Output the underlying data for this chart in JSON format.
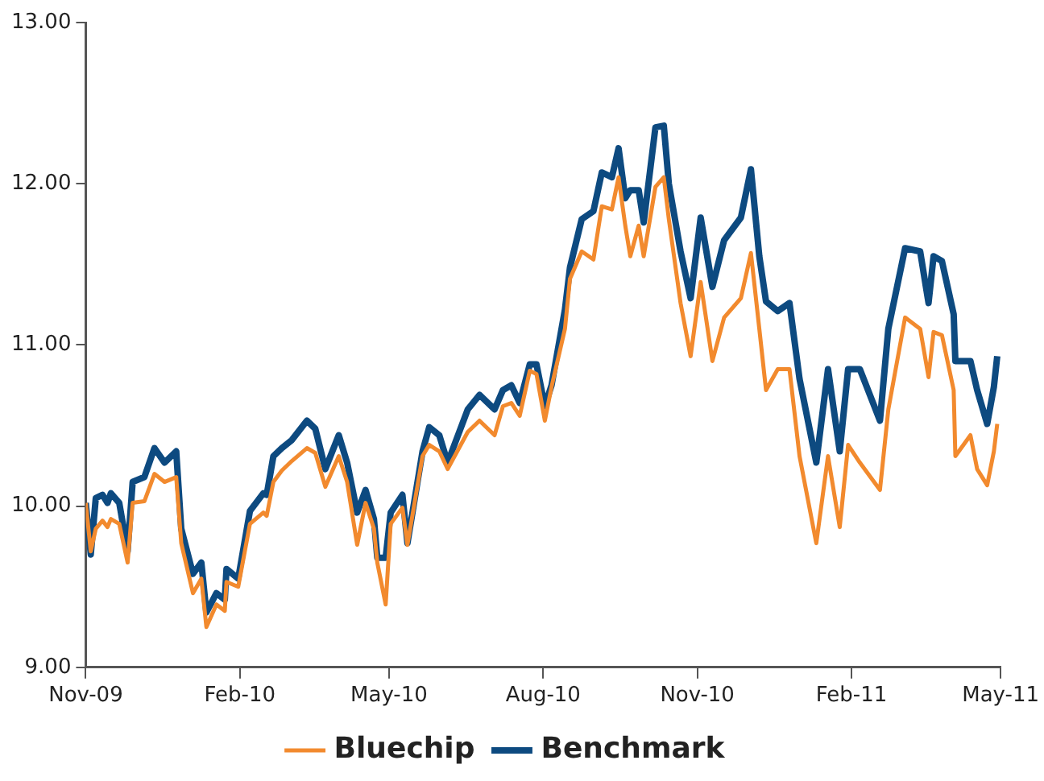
{
  "chart_data": {
    "type": "line",
    "x": [
      "2009-11-01",
      "2009-11-04",
      "2009-11-07",
      "2009-11-11",
      "2009-11-14",
      "2009-11-16",
      "2009-11-21",
      "2009-11-26",
      "2009-11-29",
      "2009-12-06",
      "2009-12-12",
      "2009-12-18",
      "2009-12-25",
      "2009-12-28",
      "2010-01-04",
      "2010-01-09",
      "2010-01-12",
      "2010-01-18",
      "2010-01-23",
      "2010-01-24",
      "2010-01-31",
      "2010-02-07",
      "2010-02-15",
      "2010-02-17",
      "2010-02-21",
      "2010-02-26",
      "2010-03-04",
      "2010-03-13",
      "2010-03-18",
      "2010-03-24",
      "2010-04-01",
      "2010-04-06",
      "2010-04-12",
      "2010-04-17",
      "2010-04-22",
      "2010-04-24",
      "2010-04-29",
      "2010-05-02",
      "2010-05-09",
      "2010-05-12",
      "2010-05-21",
      "2010-05-25",
      "2010-05-31",
      "2010-06-05",
      "2010-06-17",
      "2010-06-24",
      "2010-07-03",
      "2010-07-08",
      "2010-07-13",
      "2010-07-18",
      "2010-07-24",
      "2010-07-28",
      "2010-08-02",
      "2010-08-06",
      "2010-08-14",
      "2010-08-17",
      "2010-08-24",
      "2010-08-31",
      "2010-09-05",
      "2010-09-11",
      "2010-09-15",
      "2010-09-19",
      "2010-09-22",
      "2010-09-27",
      "2010-09-30",
      "2010-10-07",
      "2010-10-12",
      "2010-10-15",
      "2010-10-22",
      "2010-10-28",
      "2010-11-03",
      "2010-11-10",
      "2010-11-17",
      "2010-11-27",
      "2010-12-03",
      "2010-12-08",
      "2010-12-12",
      "2010-12-19",
      "2010-12-26",
      "2011-01-01",
      "2011-01-11",
      "2011-01-18",
      "2011-01-25",
      "2011-01-30",
      "2011-02-06",
      "2011-02-18",
      "2011-02-23",
      "2011-03-05",
      "2011-03-14",
      "2011-03-19",
      "2011-03-22",
      "2011-03-27",
      "2011-04-03",
      "2011-04-04",
      "2011-04-13",
      "2011-04-17",
      "2011-04-23",
      "2011-04-27",
      "2011-04-29"
    ],
    "series": [
      {
        "name": "Bluechip",
        "color": "#f28a2e",
        "values": [
          10.02,
          9.72,
          9.86,
          9.91,
          9.87,
          9.92,
          9.89,
          9.65,
          10.02,
          10.03,
          10.2,
          10.15,
          10.18,
          9.77,
          9.46,
          9.55,
          9.25,
          9.39,
          9.35,
          9.53,
          9.5,
          9.89,
          9.96,
          9.94,
          10.15,
          10.22,
          10.28,
          10.36,
          10.33,
          10.12,
          10.31,
          10.15,
          9.76,
          10.02,
          9.86,
          9.65,
          9.39,
          9.89,
          9.99,
          9.76,
          10.31,
          10.38,
          10.34,
          10.23,
          10.46,
          10.53,
          10.44,
          10.62,
          10.64,
          10.56,
          10.84,
          10.82,
          10.53,
          10.74,
          11.1,
          11.41,
          11.58,
          11.53,
          11.86,
          11.84,
          12.04,
          11.74,
          11.55,
          11.74,
          11.55,
          11.98,
          12.04,
          11.78,
          11.26,
          10.93,
          11.39,
          10.9,
          11.17,
          11.29,
          11.57,
          11.1,
          10.72,
          10.85,
          10.85,
          10.31,
          9.77,
          10.31,
          9.87,
          10.38,
          10.27,
          10.1,
          10.6,
          11.17,
          11.1,
          10.8,
          11.08,
          11.06,
          10.72,
          10.31,
          10.44,
          10.23,
          10.13,
          10.34,
          10.51
        ]
      },
      {
        "name": "Benchmark",
        "color": "#0d4a80",
        "values": [
          10.02,
          9.7,
          10.05,
          10.07,
          10.02,
          10.08,
          10.02,
          9.72,
          10.15,
          10.18,
          10.36,
          10.27,
          10.34,
          9.86,
          9.58,
          9.65,
          9.34,
          9.46,
          9.42,
          9.61,
          9.55,
          9.97,
          10.08,
          10.07,
          10.31,
          10.36,
          10.41,
          10.53,
          10.48,
          10.23,
          10.44,
          10.27,
          9.96,
          10.1,
          9.92,
          9.68,
          9.68,
          9.96,
          10.07,
          9.77,
          10.34,
          10.49,
          10.44,
          10.27,
          10.6,
          10.69,
          10.6,
          10.72,
          10.75,
          10.64,
          10.88,
          10.88,
          10.62,
          10.75,
          11.22,
          11.48,
          11.78,
          11.83,
          12.07,
          12.04,
          12.22,
          11.91,
          11.96,
          11.96,
          11.76,
          12.35,
          12.36,
          12.0,
          11.58,
          11.29,
          11.79,
          11.36,
          11.65,
          11.79,
          12.09,
          11.55,
          11.27,
          11.21,
          11.26,
          10.79,
          10.27,
          10.85,
          10.34,
          10.85,
          10.85,
          10.53,
          11.1,
          11.6,
          11.58,
          11.26,
          11.55,
          11.52,
          11.19,
          10.9,
          10.9,
          10.72,
          10.51,
          10.74,
          10.93
        ]
      }
    ],
    "xlim": [
      "2009-11-01",
      "2011-05-01"
    ],
    "xticks": [
      {
        "value": "2009-11-01",
        "label": "Nov-09"
      },
      {
        "value": "2010-02-01",
        "label": "Feb-10"
      },
      {
        "value": "2010-05-01",
        "label": "May-10"
      },
      {
        "value": "2010-08-01",
        "label": "Aug-10"
      },
      {
        "value": "2010-11-01",
        "label": "Nov-10"
      },
      {
        "value": "2011-02-01",
        "label": "Feb-11"
      },
      {
        "value": "2011-05-01",
        "label": "May-11"
      }
    ],
    "ylim": [
      9,
      13
    ],
    "yticks": [
      {
        "value": 9,
        "label": "9.00"
      },
      {
        "value": 10,
        "label": "10.00"
      },
      {
        "value": 11,
        "label": "11.00"
      },
      {
        "value": 12,
        "label": "12.00"
      },
      {
        "value": 13,
        "label": "13.00"
      }
    ],
    "grid": false,
    "legend": "bottom",
    "marker": "none",
    "line_style": "solid"
  }
}
